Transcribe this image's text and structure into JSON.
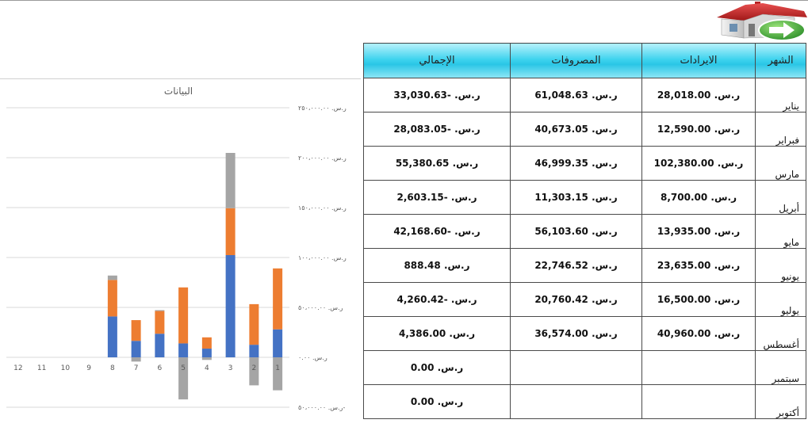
{
  "table": {
    "headers": {
      "month": "الشهر",
      "revenue": "الايرادات",
      "expenses": "المصروفات",
      "total": "الإجمالي"
    },
    "rows": [
      {
        "month": "يناير",
        "revenue": "ر.س. 28,018.00",
        "expenses": "ر.س. 61,048.63",
        "total": "ر.س. -33,030.63"
      },
      {
        "month": "فبراير",
        "revenue": "ر.س. 12,590.00",
        "expenses": "ر.س. 40,673.05",
        "total": "ر.س. -28,083.05"
      },
      {
        "month": "مارس",
        "revenue": "ر.س. 102,380.00",
        "expenses": "ر.س. 46,999.35",
        "total": "ر.س. 55,380.65"
      },
      {
        "month": "أبريل",
        "revenue": "ر.س. 8,700.00",
        "expenses": "ر.س. 11,303.15",
        "total": "ر.س. -2,603.15"
      },
      {
        "month": "مايو",
        "revenue": "ر.س. 13,935.00",
        "expenses": "ر.س. 56,103.60",
        "total": "ر.س. -42,168.60"
      },
      {
        "month": "يونيو",
        "revenue": "ر.س. 23,635.00",
        "expenses": "ر.س. 22,746.52",
        "total": "ر.س. 888.48"
      },
      {
        "month": "يوليو",
        "revenue": "ر.س. 16,500.00",
        "expenses": "ر.س. 20,760.42",
        "total": "ر.س. -4,260.42"
      },
      {
        "month": "أغسطس",
        "revenue": "ر.س. 40,960.00",
        "expenses": "ر.س. 36,574.00",
        "total": "ر.س. 4,386.00"
      },
      {
        "month": "سبتمبر",
        "revenue": "",
        "expenses": "",
        "total": "ر.س. 0.00"
      },
      {
        "month": "أكتوبر",
        "revenue": "",
        "expenses": "",
        "total": "ر.س. 0.00"
      }
    ]
  },
  "icons": {
    "home": "home-icon",
    "arrow": "right-arrow-icon"
  },
  "colors": {
    "revenue": "#4472c4",
    "expenses": "#ed7d31",
    "total": "#a5a5a5",
    "header": "#3fd3ee"
  },
  "chart_data": {
    "type": "bar",
    "stacked": true,
    "title": "البيانات",
    "categories": [
      "1",
      "2",
      "3",
      "4",
      "5",
      "6",
      "7",
      "8",
      "9",
      "10",
      "11",
      "12"
    ],
    "x_axis_reversed": true,
    "ylim": [
      -50000,
      250000
    ],
    "y_ticks": [
      -50000,
      0,
      50000,
      100000,
      150000,
      200000,
      250000
    ],
    "y_tick_labels": [
      "ر.س. ٥٠،٠٠٠.٠٠-",
      "ر.س. ٠.٠٠",
      "ر.س. ٥٠،٠٠٠.٠٠",
      "ر.س. ١٠٠،٠٠٠.٠٠",
      "ر.س. ١٥٠،٠٠٠.٠٠",
      "ر.س. ٢٠٠،٠٠٠.٠٠",
      "ر.س. ٢٥٠،٠٠٠.٠٠"
    ],
    "grid": true,
    "series": [
      {
        "values": [
          28018,
          12590,
          102380,
          8700,
          13935,
          23635,
          16500,
          40960,
          0,
          0,
          0,
          0
        ]
      },
      {
        "values": [
          61048.63,
          40673.05,
          46999.35,
          11303.15,
          56103.6,
          22746.52,
          20760.42,
          36574.0,
          0,
          0,
          0,
          0
        ]
      },
      {
        "values": [
          -33030.63,
          -28083.05,
          55380.65,
          -2603.15,
          -42168.6,
          888.48,
          -4260.42,
          4386.0,
          0,
          0,
          0,
          0
        ]
      }
    ]
  }
}
